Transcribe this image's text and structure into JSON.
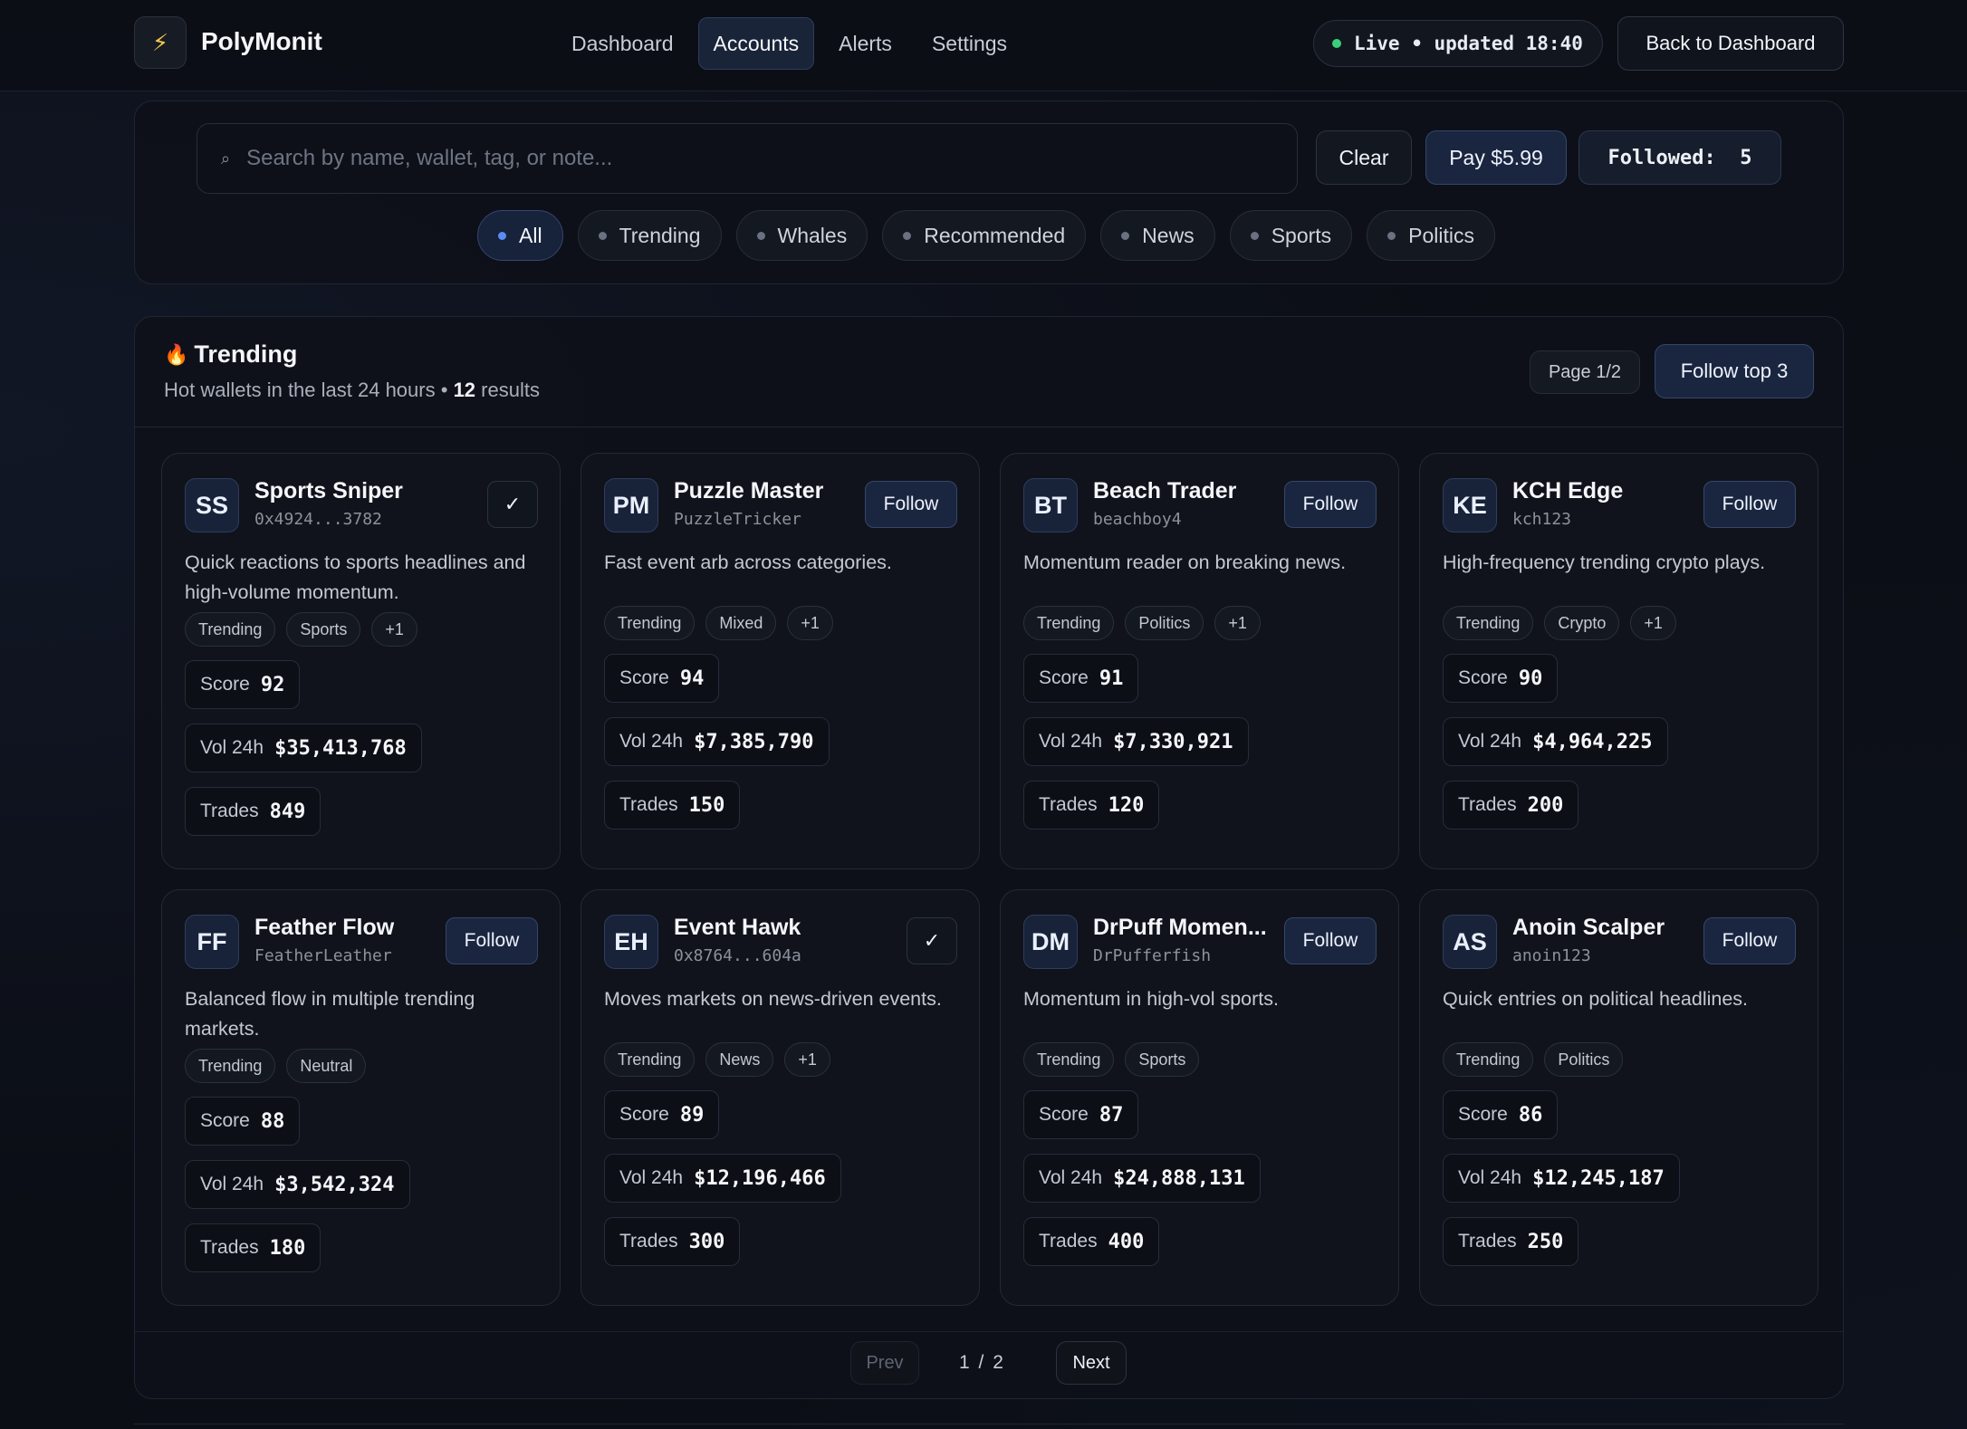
{
  "header": {
    "logo_icon": "⚡",
    "brand": "PolyMonit",
    "nav": [
      {
        "label": "Dashboard"
      },
      {
        "label": "Accounts"
      },
      {
        "label": "Alerts"
      },
      {
        "label": "Settings"
      }
    ],
    "active_nav": "Accounts",
    "live_status": "Live • updated 18:40",
    "back_button": "Back to Dashboard"
  },
  "search": {
    "icon": "⌕",
    "placeholder": "Search by name, wallet, tag, or note...",
    "value": "",
    "clear_label": "Clear",
    "pay_label": "Pay $5.99",
    "followed_label": "Followed:  5"
  },
  "filters": [
    {
      "label": "All",
      "active": true
    },
    {
      "label": "Trending",
      "active": false
    },
    {
      "label": "Whales",
      "active": false
    },
    {
      "label": "Recommended",
      "active": false
    },
    {
      "label": "News",
      "active": false
    },
    {
      "label": "Sports",
      "active": false
    },
    {
      "label": "Politics",
      "active": false
    }
  ],
  "results": {
    "icon": "🔥",
    "title": "Trending",
    "subtitle": "Hot wallets in the last 24 hours",
    "separator": "•",
    "count": "12",
    "count_suffix": "results",
    "page_label": "Page 1/2",
    "follow_top_label": "Follow top 3",
    "score_label": "Score",
    "vol_label": "Vol 24h",
    "trades_label": "Trades",
    "follow_label": "Follow",
    "followed_mark": "✓"
  },
  "cards": [
    {
      "initials": "SS",
      "name": "Sports Sniper",
      "handle": "0x4924...3782",
      "followed": true,
      "desc": "Quick reactions to sports headlines and high-volume momentum.",
      "tags": [
        "Trending",
        "Sports",
        "+1"
      ],
      "score": "92",
      "vol": "$35,413,768",
      "trades": "849"
    },
    {
      "initials": "PM",
      "name": "Puzzle Master",
      "handle": "PuzzleTricker",
      "followed": false,
      "desc": "Fast event arb across categories.",
      "tags": [
        "Trending",
        "Mixed",
        "+1"
      ],
      "score": "94",
      "vol": "$7,385,790",
      "trades": "150"
    },
    {
      "initials": "BT",
      "name": "Beach Trader",
      "handle": "beachboy4",
      "followed": false,
      "desc": "Momentum reader on breaking news.",
      "tags": [
        "Trending",
        "Politics",
        "+1"
      ],
      "score": "91",
      "vol": "$7,330,921",
      "trades": "120"
    },
    {
      "initials": "KE",
      "name": "KCH Edge",
      "handle": "kch123",
      "followed": false,
      "desc": "High-frequency trending crypto plays.",
      "tags": [
        "Trending",
        "Crypto",
        "+1"
      ],
      "score": "90",
      "vol": "$4,964,225",
      "trades": "200"
    },
    {
      "initials": "FF",
      "name": "Feather Flow",
      "handle": "FeatherLeather",
      "followed": false,
      "desc": "Balanced flow in multiple trending markets.",
      "tags": [
        "Trending",
        "Neutral"
      ],
      "score": "88",
      "vol": "$3,542,324",
      "trades": "180"
    },
    {
      "initials": "EH",
      "name": "Event Hawk",
      "handle": "0x8764...604a",
      "followed": true,
      "desc": "Moves markets on news-driven events.",
      "tags": [
        "Trending",
        "News",
        "+1"
      ],
      "score": "89",
      "vol": "$12,196,466",
      "trades": "300"
    },
    {
      "initials": "DM",
      "name": "DrPuff Momen...",
      "handle": "DrPufferfish",
      "followed": false,
      "desc": "Momentum in high-vol sports.",
      "tags": [
        "Trending",
        "Sports"
      ],
      "score": "87",
      "vol": "$24,888,131",
      "trades": "400"
    },
    {
      "initials": "AS",
      "name": "Anoin Scalper",
      "handle": "anoin123",
      "followed": false,
      "desc": "Quick entries on political headlines.",
      "tags": [
        "Trending",
        "Politics"
      ],
      "score": "86",
      "vol": "$12,245,187",
      "trades": "250"
    }
  ],
  "pager": {
    "prev_label": "Prev",
    "current": "1",
    "separator": "/",
    "total": "2",
    "next_label": "Next"
  }
}
